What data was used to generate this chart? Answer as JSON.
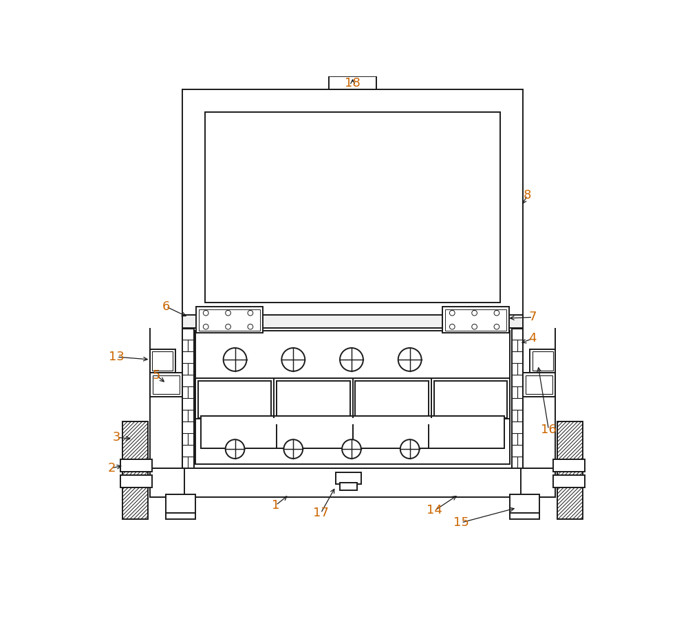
{
  "bg_color": "#ffffff",
  "line_color": "#1a1a1a",
  "lw": 1.4,
  "label_color": "#cc6600",
  "label_fontsize": 13,
  "figsize": [
    10.0,
    9.25
  ],
  "dpi": 100
}
